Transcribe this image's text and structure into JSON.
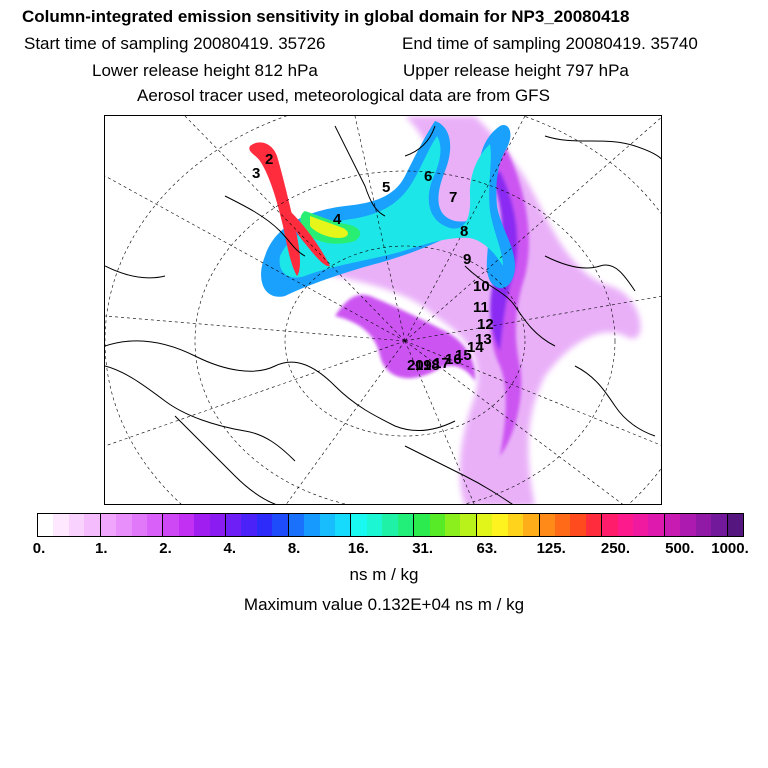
{
  "header": {
    "title": "Column-integrated emission sensitivity in global domain for NP3_20080418",
    "start_time": "Start time of sampling 20080419. 35726",
    "end_time": "End time of sampling 20080419. 35740",
    "lower_release": "Lower release height  812 hPa",
    "upper_release": "Upper release height  797 hPa",
    "tracer_info": "Aerosol tracer used, meteorological data are from GFS"
  },
  "colorbar": {
    "colors": [
      "#ffffff",
      "#fde8ff",
      "#f9d2fe",
      "#f4bbfd",
      "#efa6fc",
      "#e88ffb",
      "#e178fa",
      "#d960f8",
      "#cf48f6",
      "#c230f3",
      "#a01ff0",
      "#8a1cf2",
      "#6d1ff5",
      "#4b22f8",
      "#2c2bfa",
      "#1e4cfb",
      "#1a72fc",
      "#179afd",
      "#17bdfd",
      "#17dbfd",
      "#1af8f2",
      "#1df6d2",
      "#1ff2a6",
      "#22ee7a",
      "#2ceb4f",
      "#56ea27",
      "#8bee1d",
      "#b9f21a",
      "#e2f51a",
      "#fff31f",
      "#ffd21c",
      "#ffae1a",
      "#ff8a18",
      "#ff6a18",
      "#ff4b1e",
      "#ff2c3e",
      "#ff1c6a",
      "#fc1a8c",
      "#ef1aa0",
      "#dd1aad",
      "#c71bb2",
      "#ad1aaf",
      "#901aa6",
      "#72189a",
      "#56167f"
    ],
    "labels": [
      "0.",
      "1.",
      "2.",
      "4.",
      "8.",
      "16.",
      "31.",
      "63.",
      "125.",
      "250.",
      "500.",
      "1000."
    ],
    "unit": "ns m / kg"
  },
  "max_value": "Maximum value  0.132E+04 ns m / kg",
  "map": {
    "trajectory_labels": [
      "2",
      "3",
      "4",
      "5",
      "6",
      "7",
      "8",
      "9",
      "10",
      "11",
      "12",
      "13",
      "14",
      "15",
      "16",
      "17",
      "18",
      "19",
      "20"
    ],
    "plume_colors": [
      "#e7a8f8",
      "#cc55f2",
      "#8a2af2",
      "#1aa0fd",
      "#1ce6e8",
      "#28ef74",
      "#e6f51a",
      "#ff2c3e"
    ]
  }
}
